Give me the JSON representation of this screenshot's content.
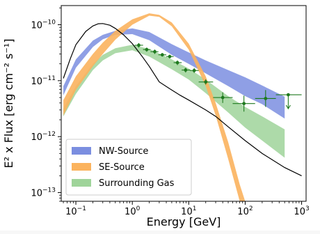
{
  "chart_data": {
    "type": "scatter",
    "xlabel": "Energy [GeV]",
    "ylabel": "E² x Flux [erg cm⁻² s⁻¹]",
    "xscale": "log",
    "yscale": "log",
    "xlim": [
      0.055,
      1200
    ],
    "ylim": [
      7e-14,
      2.2e-10
    ],
    "xticks": [
      {
        "value": 0.1,
        "base": "10",
        "exp": "−1"
      },
      {
        "value": 1,
        "base": "10",
        "exp": "0"
      },
      {
        "value": 10,
        "base": "10",
        "exp": "1"
      },
      {
        "value": 100,
        "base": "10",
        "exp": "2"
      },
      {
        "value": 1000,
        "base": "10",
        "exp": "3"
      }
    ],
    "yticks": [
      {
        "value": 1e-13,
        "base": "10",
        "exp": "−13"
      },
      {
        "value": 1e-12,
        "base": "10",
        "exp": "−12"
      },
      {
        "value": 1e-11,
        "base": "10",
        "exp": "−11"
      },
      {
        "value": 1e-10,
        "base": "10",
        "exp": "−10"
      }
    ],
    "grid": false,
    "legend_position": "lower-left",
    "colors": {
      "nw": "#7b8ee0",
      "se": "#fbb35e",
      "gas": "#9fd49a",
      "points": "#1f7a1f",
      "model": "#000000"
    },
    "bands": [
      {
        "name": "NW-Source",
        "x": [
          0.06,
          0.1,
          0.2,
          0.3,
          0.5,
          1,
          2,
          5,
          10,
          20,
          50,
          100,
          200,
          500
        ],
        "upper": [
          8e-12,
          2.4e-11,
          5.2e-11,
          6.6e-11,
          7.8e-11,
          8.6e-11,
          7.4e-11,
          4.5e-11,
          3.2e-11,
          2.3e-11,
          1.55e-11,
          1.15e-11,
          8.2e-12,
          5.2e-12
        ],
        "lower": [
          5.5e-12,
          1.7e-11,
          4e-11,
          5.5e-11,
          6.6e-11,
          6.8e-11,
          5.3e-11,
          2.9e-11,
          2e-11,
          1.35e-11,
          8e-12,
          5.3e-12,
          3.8e-12,
          2.1e-12
        ]
      },
      {
        "name": "SE-Source",
        "x": [
          0.06,
          0.1,
          0.2,
          0.3,
          0.5,
          1,
          2,
          3,
          5,
          10,
          20,
          30,
          50,
          80,
          100
        ],
        "upper": [
          4.5e-12,
          1.2e-11,
          3e-11,
          4.8e-11,
          7.8e-11,
          1.25e-10,
          1.6e-10,
          1.5e-10,
          1.1e-10,
          4.6e-11,
          1.2e-11,
          4e-12,
          8e-13,
          1.4e-13,
          7e-14
        ],
        "lower": [
          2.4e-12,
          6.8e-12,
          1.8e-11,
          3e-11,
          5.4e-11,
          1e-10,
          1.45e-10,
          1.38e-10,
          9.4e-11,
          3.6e-11,
          8e-12,
          2.4e-12,
          4e-13,
          7e-14,
          4e-14
        ]
      },
      {
        "name": "Surrounding Gas",
        "x": [
          0.06,
          0.1,
          0.2,
          0.3,
          0.5,
          1,
          2,
          5,
          10,
          20,
          50,
          100,
          200,
          500
        ],
        "upper": [
          3.2e-12,
          8e-12,
          2e-11,
          2.9e-11,
          3.8e-11,
          4.4e-11,
          3.7e-11,
          2.4e-11,
          1.65e-11,
          1.05e-11,
          5.3e-12,
          3.4e-12,
          2.3e-12,
          1.35e-12
        ],
        "lower": [
          2.3e-12,
          5.8e-12,
          1.55e-11,
          2.3e-11,
          3.1e-11,
          3.5e-11,
          2.7e-11,
          1.6e-11,
          1.05e-11,
          6e-12,
          2.7e-12,
          1.45e-12,
          8.5e-13,
          4.2e-13
        ]
      }
    ],
    "model_line": {
      "x": [
        0.06,
        0.08,
        0.1,
        0.15,
        0.2,
        0.25,
        0.3,
        0.4,
        0.5,
        0.7,
        1,
        1.5,
        2,
        3,
        5,
        7,
        10,
        20,
        30,
        50,
        100,
        200,
        500,
        1000
      ],
      "y": [
        1.1e-11,
        2.5e-11,
        4.4e-11,
        7.6e-11,
        9.5e-11,
        1.04e-10,
        1.05e-10,
        9.8e-11,
        8.6e-11,
        6.6e-11,
        4.6e-11,
        2.7e-11,
        1.8e-11,
        9.5e-12,
        6.8e-12,
        5.5e-12,
        4.5e-12,
        3e-12,
        2.3e-12,
        1.5e-12,
        8.5e-13,
        5e-13,
        2.8e-13,
        2e-13
      ]
    },
    "points": [
      {
        "x": 1.3,
        "xlo": 1.1,
        "xhi": 1.55,
        "y": 4.3e-11,
        "ylo": 3.9e-11,
        "yhi": 4.7e-11
      },
      {
        "x": 1.8,
        "xlo": 1.55,
        "xhi": 2.1,
        "y": 3.6e-11,
        "ylo": 3.3e-11,
        "yhi": 3.9e-11
      },
      {
        "x": 2.5,
        "xlo": 2.1,
        "xhi": 2.9,
        "y": 3.3e-11,
        "ylo": 3e-11,
        "yhi": 3.6e-11
      },
      {
        "x": 3.4,
        "xlo": 2.9,
        "xhi": 4,
        "y": 2.9e-11,
        "ylo": 2.7e-11,
        "yhi": 3.1e-11
      },
      {
        "x": 4.6,
        "xlo": 4,
        "xhi": 5.4,
        "y": 2.7e-11,
        "ylo": 2.5e-11,
        "yhi": 2.9e-11
      },
      {
        "x": 6.3,
        "xlo": 5.4,
        "xhi": 7.5,
        "y": 2.1e-11,
        "ylo": 1.9e-11,
        "yhi": 2.3e-11
      },
      {
        "x": 8.8,
        "xlo": 7.5,
        "xhi": 10.5,
        "y": 1.55e-11,
        "ylo": 1.4e-11,
        "yhi": 1.7e-11
      },
      {
        "x": 12.5,
        "xlo": 10.5,
        "xhi": 15,
        "y": 1.52e-11,
        "ylo": 1.38e-11,
        "yhi": 1.68e-11
      },
      {
        "x": 20,
        "xlo": 15,
        "xhi": 27,
        "y": 9.5e-12,
        "ylo": 8.5e-12,
        "yhi": 1.06e-11
      },
      {
        "x": 40,
        "xlo": 27,
        "xhi": 60,
        "y": 5e-12,
        "ylo": 4e-12,
        "yhi": 6.2e-12
      },
      {
        "x": 95,
        "xlo": 60,
        "xhi": 150,
        "y": 3.9e-12,
        "ylo": 2.8e-12,
        "yhi": 5.4e-12
      },
      {
        "x": 230,
        "xlo": 150,
        "xhi": 350,
        "y": 4.8e-12,
        "ylo": 3.4e-12,
        "yhi": 6.8e-12
      },
      {
        "x": 580,
        "xlo": 350,
        "xhi": 1000,
        "y": 5.6e-12,
        "upper_limit": true
      }
    ],
    "legend": [
      {
        "label": "NW-Source",
        "color": "#7b8ee0"
      },
      {
        "label": "SE-Source",
        "color": "#fbb35e"
      },
      {
        "label": "Surrounding Gas",
        "color": "#9fd49a"
      }
    ]
  }
}
